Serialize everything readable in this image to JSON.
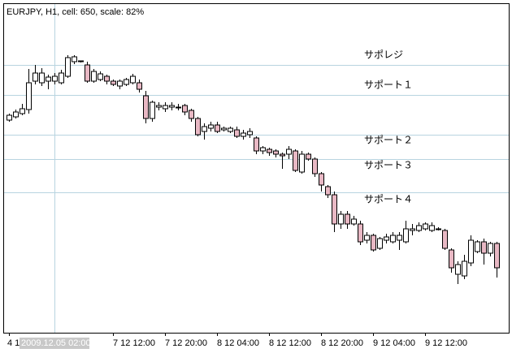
{
  "chart_data": {
    "type": "candlestick",
    "title": "EURJPY, H1, cell: 650, scale: 82%",
    "crosshair_label": "2009.12.05 02:00",
    "ylim": [
      130.0,
      134.05
    ],
    "up_color": "#ffffff",
    "down_color": "#e8b8c4",
    "line_color": "#000000",
    "level_color": "#b8d4e0",
    "levels": [
      {
        "label": "サポレジ",
        "value": 133.3
      },
      {
        "label": "サポート１",
        "value": 132.93
      },
      {
        "label": "サポート２",
        "value": 132.44
      },
      {
        "label": "サポート３",
        "value": 132.14
      },
      {
        "label": "サポート４",
        "value": 131.73
      }
    ],
    "categories": [
      "4 1",
      null,
      null,
      null,
      null,
      null,
      null,
      null,
      null,
      null,
      null,
      null,
      null,
      null,
      null,
      null,
      "7 12 12:00",
      null,
      null,
      null,
      null,
      null,
      null,
      null,
      "7 12 20:00",
      null,
      null,
      null,
      null,
      null,
      null,
      null,
      "8 12 04:00",
      null,
      null,
      null,
      null,
      null,
      null,
      null,
      "8 12 12:00",
      null,
      null,
      null,
      null,
      null,
      null,
      null,
      "8 12 20:00",
      null,
      null,
      null,
      null,
      null,
      null,
      null,
      "9 12 04:00",
      null,
      null,
      null,
      null,
      null,
      null,
      null,
      "9 12 12:00",
      null,
      null,
      null,
      null,
      null,
      null,
      null,
      null,
      null,
      null,
      null
    ],
    "open": [
      132.62,
      132.66,
      132.7,
      132.75,
      133.1,
      133.08,
      133.1,
      133.1,
      133.08,
      133.16,
      133.34,
      133.34,
      133.3,
      133.1,
      133.12,
      133.16,
      133.1,
      133.04,
      133.06,
      133.08,
      133.08,
      132.92,
      132.64,
      132.78,
      132.76,
      132.78,
      132.78,
      132.8,
      132.74,
      132.64,
      132.48,
      132.52,
      132.56,
      132.5,
      132.48,
      132.5,
      132.42,
      132.44,
      132.4,
      132.24,
      132.26,
      132.24,
      132.2,
      132.2,
      132.24,
      131.98,
      132.2,
      132.14,
      131.96,
      131.8,
      131.7,
      131.34,
      131.46,
      131.34,
      131.34,
      131.14,
      131.2,
      131.04,
      131.14,
      131.12,
      131.14,
      131.12,
      131.26,
      131.26,
      131.28,
      131.26,
      131.28,
      131.26,
      131.02,
      130.72,
      130.7,
      130.86,
      131.0,
      131.12,
      130.98,
      131.1
    ],
    "high": [
      132.7,
      132.75,
      132.82,
      133.25,
      133.3,
      133.26,
      133.18,
      133.2,
      133.24,
      133.42,
      133.42,
      133.35,
      133.34,
      133.25,
      133.22,
      133.18,
      133.12,
      133.12,
      133.14,
      133.19,
      133.12,
      132.98,
      132.86,
      132.84,
      132.84,
      132.84,
      132.82,
      132.82,
      132.76,
      132.66,
      132.58,
      132.6,
      132.6,
      132.54,
      132.54,
      132.54,
      132.5,
      132.52,
      132.42,
      132.3,
      132.28,
      132.26,
      132.22,
      132.3,
      132.26,
      132.24,
      132.22,
      132.16,
      131.98,
      131.82,
      131.74,
      131.5,
      131.5,
      131.44,
      131.38,
      131.24,
      131.22,
      131.18,
      131.22,
      131.24,
      131.24,
      131.38,
      131.34,
      131.36,
      131.36,
      131.36,
      131.3,
      131.28,
      131.04,
      130.88,
      130.96,
      131.2,
      131.14,
      131.16,
      131.12,
      131.12
    ],
    "low": [
      132.6,
      132.64,
      132.68,
      132.7,
      133.06,
      133.04,
      133.0,
      133.06,
      133.06,
      133.14,
      133.31,
      133.33,
      133.08,
      133.08,
      133.1,
      133.06,
      133.04,
      133.0,
      133.04,
      133.06,
      132.96,
      132.58,
      132.6,
      132.74,
      132.72,
      132.74,
      132.74,
      132.68,
      132.6,
      132.42,
      132.38,
      132.48,
      132.46,
      132.48,
      132.46,
      132.4,
      132.38,
      132.4,
      132.2,
      132.2,
      132.18,
      132.16,
      132.02,
      132.14,
      131.98,
      131.96,
      132.12,
      131.92,
      131.74,
      131.66,
      131.24,
      131.28,
      131.28,
      131.32,
      131.08,
      131.1,
      131.0,
      131.02,
      131.1,
      131.1,
      131.02,
      131.1,
      131.2,
      131.24,
      131.26,
      131.24,
      131.26,
      131.02,
      130.74,
      130.6,
      130.66,
      130.82,
      130.98,
      130.84,
      130.94,
      130.68
    ],
    "close": [
      132.68,
      132.72,
      132.76,
      133.08,
      133.2,
      133.2,
      133.15,
      133.16,
      133.2,
      133.39,
      133.4,
      133.35,
      133.1,
      133.22,
      133.19,
      133.1,
      133.06,
      133.1,
      133.12,
      133.16,
      133.0,
      132.64,
      132.84,
      132.8,
      132.8,
      132.8,
      132.78,
      132.72,
      132.64,
      132.44,
      132.54,
      132.56,
      132.48,
      132.52,
      132.52,
      132.42,
      132.46,
      132.48,
      132.24,
      132.28,
      132.22,
      132.2,
      132.18,
      132.26,
      132.0,
      132.2,
      132.14,
      131.96,
      131.82,
      131.7,
      131.34,
      131.46,
      131.34,
      131.4,
      131.12,
      131.2,
      131.02,
      131.16,
      131.18,
      131.2,
      131.2,
      131.28,
      131.28,
      131.32,
      131.34,
      131.32,
      131.28,
      131.04,
      130.8,
      130.84,
      130.88,
      131.14,
      131.12,
      130.98,
      131.1,
      130.8
    ]
  }
}
